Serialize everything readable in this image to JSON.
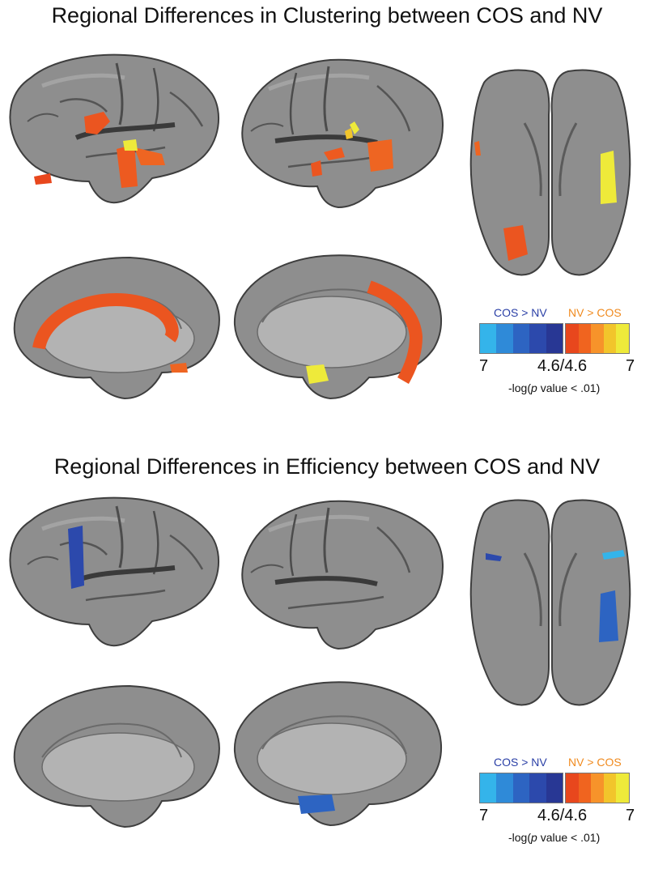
{
  "panels": [
    {
      "title": "Regional Differences in Clustering between COS and NV",
      "legend": {
        "blue_label": "COS > NV",
        "orange_label": "NV > COS",
        "tick_left": "7",
        "tick_mid": "4.6/4.6",
        "tick_right": "7",
        "axis_prefix": "-log(",
        "axis_p": "p",
        "axis_suffix": " value < .01)"
      }
    },
    {
      "title": "Regional Differences in Efficiency between COS and NV",
      "legend": {
        "blue_label": "COS > NV",
        "orange_label": "NV > COS",
        "tick_left": "7",
        "tick_mid": "4.6/4.6",
        "tick_right": "7",
        "axis_prefix": "-log(",
        "axis_p": "p",
        "axis_suffix": " value < .01)"
      }
    }
  ],
  "colors": {
    "cortex": "#8e8e8e",
    "cortex_light": "#a9a9a9",
    "sulcus": "#5b5b5b",
    "medial_wall": "#b3b3b3",
    "blue_scale": [
      "#34b4ea",
      "#2f8ad8",
      "#2d64c2",
      "#2c49ac",
      "#283794"
    ],
    "orange_scale": [
      "#e8471d",
      "#f0641f",
      "#f7932a",
      "#f2c52b",
      "#eeea3a"
    ]
  }
}
